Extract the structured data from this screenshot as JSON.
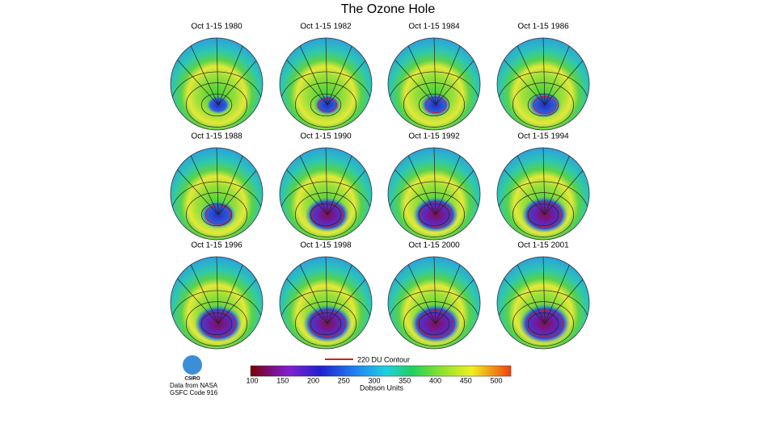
{
  "header": {
    "title": "The Ozone Hole"
  },
  "panels": [
    "Oct 1-15 1980",
    "Oct 1-15 1982",
    "Oct 1-15 1984",
    "Oct 1-15 1986",
    "Oct 1-15 1988",
    "Oct 1-15 1990",
    "Oct 1-15 1992",
    "Oct 1-15 1994",
    "Oct 1-15 1996",
    "Oct 1-15 1998",
    "Oct 1-15 2000",
    "Oct 1-15 2001"
  ],
  "legend": {
    "contour": "220 DU Contour",
    "ticks": [
      100,
      150,
      200,
      250,
      300,
      350,
      400,
      450,
      500
    ],
    "unit": "Dobson Units"
  },
  "logo": "CSIRO",
  "credit": [
    "Data from NASA",
    "GSFC Code 916"
  ]
}
